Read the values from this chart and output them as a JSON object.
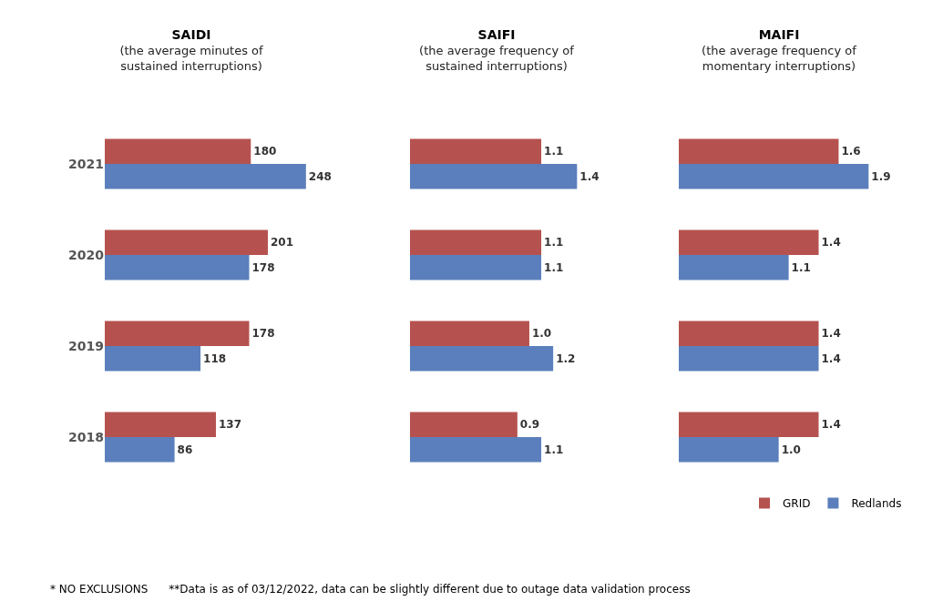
{
  "chart_data": [
    {
      "type": "bar",
      "orientation": "horizontal",
      "title": "SAIDI",
      "subtitle": "(the average minutes of sustained interruptions)",
      "categories": [
        "2021",
        "2020",
        "2019",
        "2018"
      ],
      "series": [
        {
          "color": "#b5524f",
          "values": [
            180,
            201,
            178,
            137
          ],
          "value_labels": [
            "180",
            "201",
            "178",
            "137"
          ]
        },
        {
          "color": "#5b7fbc",
          "values": [
            248,
            178,
            118,
            86
          ],
          "value_labels": [
            "248",
            "178",
            "118",
            "86"
          ]
        }
      ],
      "tick_labels": "y",
      "legend": false,
      "grid": false,
      "annotations": [
        "* NO EXCLUSIONS",
        "**Data is as of 03/12/2022, data can be slightly different due to outage data validation process"
      ]
    },
    {
      "type": "bar",
      "orientation": "horizontal",
      "title": "SAIFI",
      "subtitle": "(the average frequency of sustained interruptions)",
      "categories": [
        "2021",
        "2020",
        "2019",
        "2018"
      ],
      "series": [
        {
          "color": "#b5524f",
          "values": [
            1.1,
            1.1,
            1.0,
            0.9
          ],
          "value_labels": [
            "1.1",
            "1.1",
            "1.0",
            "0.9"
          ]
        },
        {
          "color": "#5b7fbc",
          "values": [
            1.4,
            1.1,
            1.2,
            1.1
          ],
          "value_labels": [
            "1.4",
            "1.1",
            "1.2",
            "1.1"
          ]
        }
      ],
      "tick_labels": false,
      "legend": false,
      "grid": false
    },
    {
      "type": "bar",
      "orientation": "horizontal",
      "title": "MAIFI",
      "subtitle": "(the average frequency of momentary interruptions)",
      "categories": [
        "2021",
        "2020",
        "2019",
        "2018"
      ],
      "series": [
        {
          "name": "GRID",
          "color": "#b5524f",
          "values": [
            1.6,
            1.4,
            1.4,
            1.4
          ],
          "value_labels": [
            "1.6",
            "1.4",
            "1.4",
            "1.4"
          ]
        },
        {
          "name": "Redlands",
          "color": "#5b7fbc",
          "values": [
            1.9,
            1.1,
            1.4,
            1.0
          ],
          "value_labels": [
            "1.9",
            "1.1",
            "1.4",
            "1.0"
          ]
        }
      ],
      "tick_labels": false,
      "legend": "bottom right",
      "grid": false
    }
  ]
}
